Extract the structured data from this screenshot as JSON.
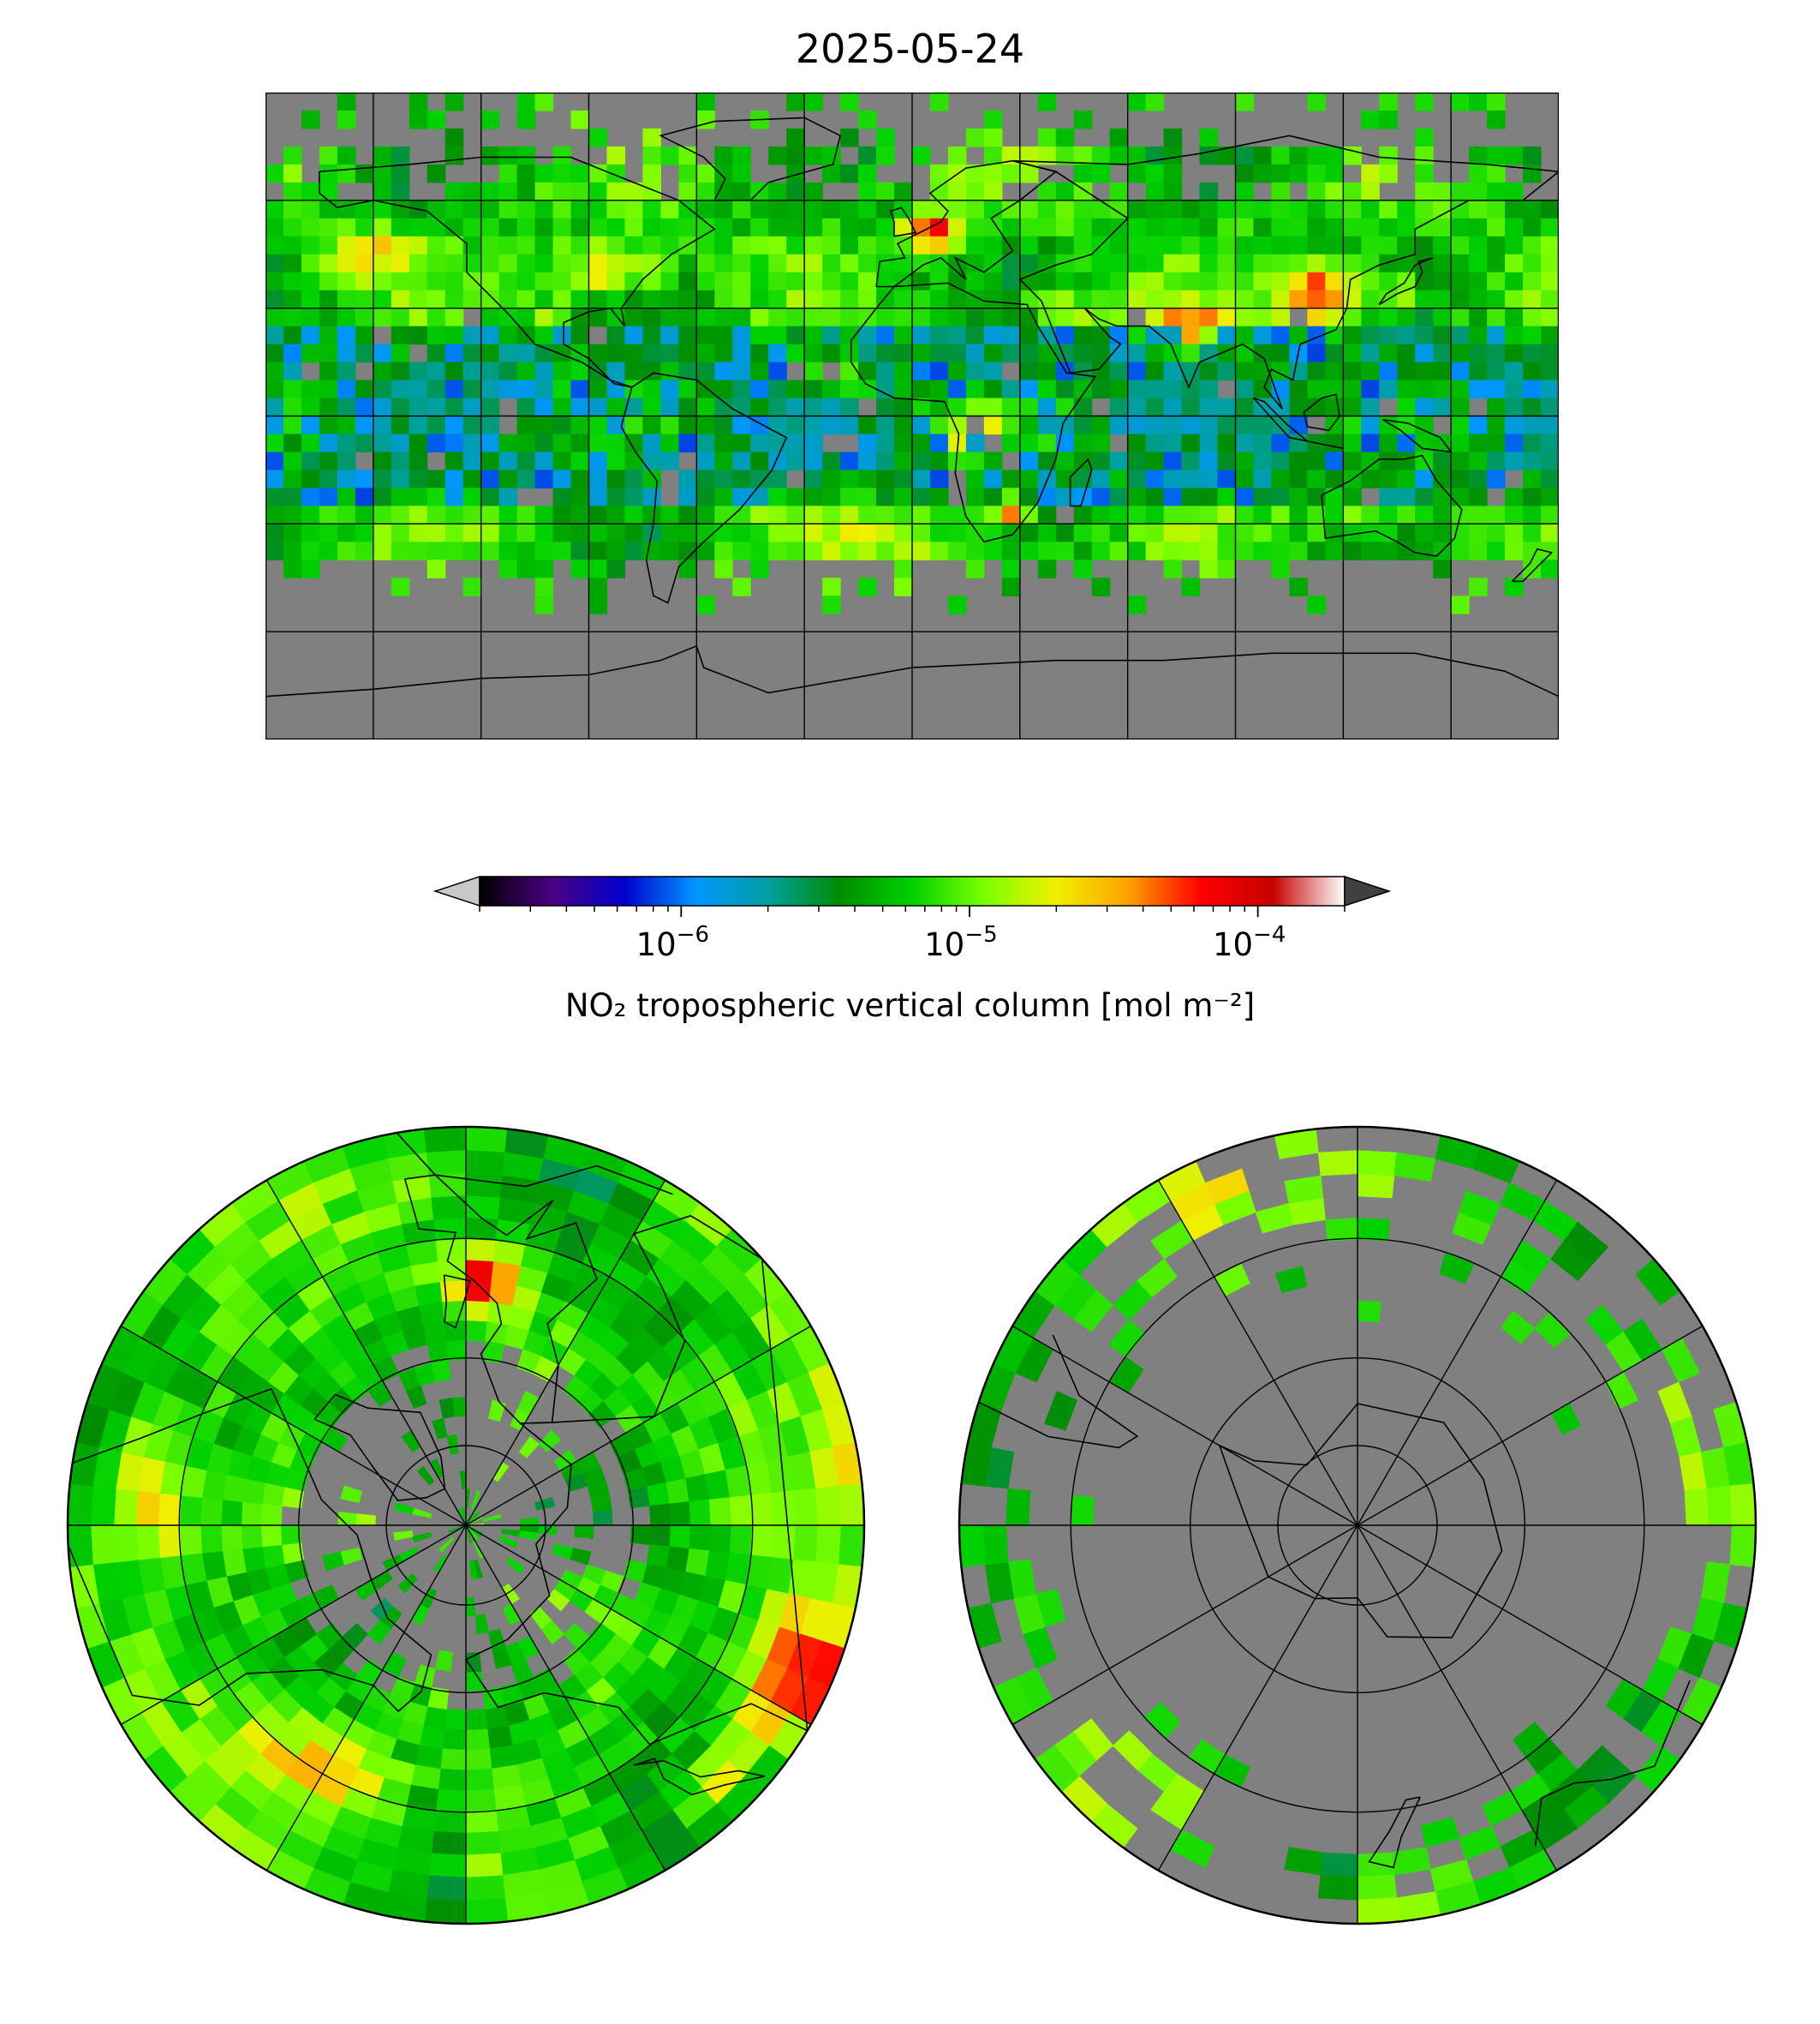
{
  "title": "2025-05-24",
  "colorbar": {
    "label": "NO₂ tropospheric vertical column [mol m⁻²]",
    "scale": "log",
    "range": [
      2e-07,
      0.0002
    ],
    "ticks": [
      {
        "value": 1e-06,
        "base": "10",
        "exp": "−6"
      },
      {
        "value": 1e-05,
        "base": "10",
        "exp": "−5"
      },
      {
        "value": 0.0001,
        "base": "10",
        "exp": "−4"
      }
    ],
    "colors": [
      "#000000",
      "#4b0082",
      "#0000cd",
      "#0096ff",
      "#00a0a0",
      "#008c00",
      "#00d200",
      "#7dff00",
      "#f0f000",
      "#ffa000",
      "#ff0000",
      "#c80000",
      "#ffffff"
    ],
    "under_color": "#c8c8c8",
    "over_color": "#404040",
    "nodata_color": "#808080"
  },
  "maps": [
    {
      "name": "world",
      "projection": "plate-carree"
    },
    {
      "name": "north-pole",
      "projection": "north-polar-stereographic"
    },
    {
      "name": "south-pole",
      "projection": "south-polar-stereographic"
    }
  ]
}
